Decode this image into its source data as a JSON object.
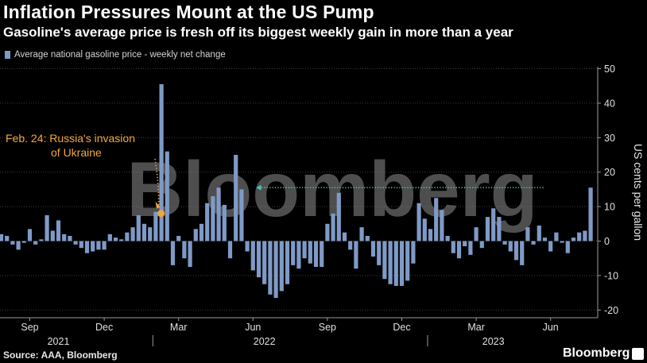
{
  "title": "Inflation Pressures Mount at the US Pump",
  "subtitle": "Gasoline's average price is fresh off its biggest weekly gain in more than a year",
  "source": "Source: AAA, Bloomberg",
  "brand": "Bloomberg",
  "watermark": "Bloomberg",
  "colors": {
    "bar": "#7f9ac6",
    "annotation": "#f0a640",
    "reference_line": "#3fc9c1",
    "gridline": "#3c3c3c"
  },
  "chart_data": {
    "type": "bar",
    "title": "Inflation Pressures Mount at the US Pump",
    "legend": [
      "Average national gasoline price - weekly net change"
    ],
    "legend_position": "top-left",
    "ylabel": "US cents per gallon",
    "y_axis_side": "right",
    "ylim": [
      -23,
      52
    ],
    "yticks": [
      50,
      40,
      30,
      20,
      10,
      0,
      -10,
      -20
    ],
    "grid": "horizontal",
    "x_month_labels": [
      "Sep",
      "Dec",
      "Mar",
      "Jun",
      "Sep",
      "Dec",
      "Mar",
      "Jun"
    ],
    "x_month_label_weeks": [
      5,
      18,
      31,
      44,
      57,
      70,
      83,
      96
    ],
    "x_year_labels": [
      "2021",
      "2022",
      "2023"
    ],
    "x_year_label_weeks": [
      10,
      46,
      86
    ],
    "x_year_separator_weeks": [
      26.5,
      74.5
    ],
    "series": [
      {
        "name": "Average national gasoline price - weekly net change",
        "values": [
          2,
          1.5,
          -1,
          -2.5,
          -0.5,
          3.5,
          -1,
          0.5,
          7.5,
          3,
          6,
          2,
          1.5,
          -1,
          -2,
          -3.5,
          -3,
          -2.5,
          -2.5,
          2,
          1,
          0.5,
          2.5,
          4,
          7.5,
          5,
          4,
          8.5,
          45.5,
          26,
          -7,
          1.5,
          -5,
          -7.5,
          3.5,
          5,
          11,
          13,
          15.5,
          10.5,
          -5,
          25,
          15,
          -3,
          -8.5,
          -10.5,
          -12.5,
          -15.5,
          -16.5,
          -14.5,
          -12.5,
          -7,
          -8,
          -5,
          -6.5,
          -7.5,
          -7.5,
          5,
          8,
          14,
          2.5,
          -2.5,
          -8,
          4,
          1.5,
          -4.5,
          -7,
          -11,
          -12.5,
          -13,
          -13,
          -11.5,
          -6.5,
          11,
          6.5,
          3.5,
          12.5,
          9,
          1.5,
          -3.5,
          -5,
          -1.5,
          -4,
          4,
          -2,
          7,
          9.5,
          7,
          -1,
          -3,
          -5.5,
          -7,
          4,
          -1,
          4.5,
          1,
          -3,
          2.5,
          -0.5,
          -3.5,
          1,
          2.5,
          3,
          15.5
        ]
      }
    ],
    "reference_line": {
      "value": 15.5,
      "from_week": 45,
      "to_week": 95,
      "direction": "left"
    },
    "annotations": [
      {
        "lines": [
          "Feb. 24: Russia's invasion",
          "of Ukraine"
        ],
        "week": 28,
        "value": 8
      }
    ]
  }
}
